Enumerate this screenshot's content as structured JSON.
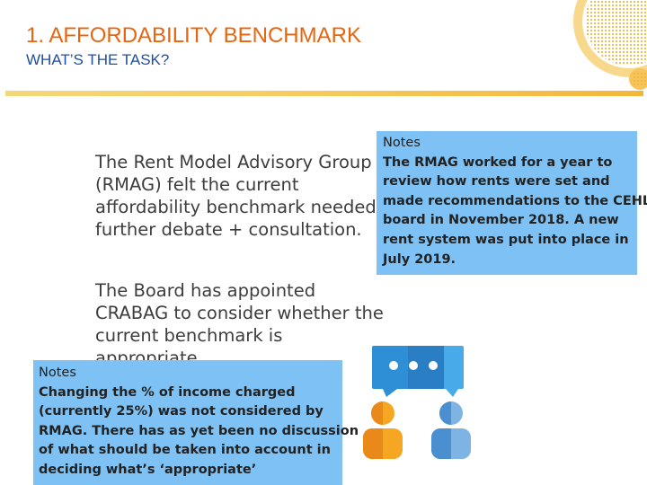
{
  "header": {
    "title": "1. AFFORDABILITY BENCHMARK",
    "subtitle": "WHAT’S THE TASK?"
  },
  "main": {
    "paragraph1": "The Rent Model Advisory Group (RMAG) felt the current affordability benchmark  needed further debate + consultation.",
    "paragraph2": "The Board has appointed CRABAG to consider whether the current benchmark is appropriate."
  },
  "notes_right": {
    "heading": "Notes",
    "lines": [
      "The RMAG worked for a year to",
      "review how rents were set and",
      "made recommendations to the CEHL",
      "board in November 2018. A new",
      "rent system was put into place in",
      "July 2019."
    ]
  },
  "notes_left": {
    "heading": "Notes",
    "lines": [
      "Changing the  % of income charged",
      "(currently 25%) was not considered by",
      "RMAG. There has as yet been no discussion",
      "of what should be taken into account in",
      "deciding what’s ‘appropriate’"
    ]
  },
  "icons": {
    "decoration": "honeycomb-circle-icon",
    "illustration": "two-people-chat-icon"
  },
  "colors": {
    "title": "#e8650f",
    "subtitle": "#1f4f9e",
    "note_bg": "#7ec1f4",
    "rule": "#f4b63a"
  }
}
